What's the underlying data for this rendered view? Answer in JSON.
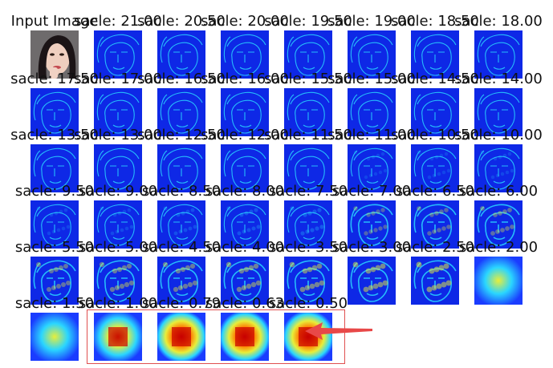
{
  "grid": {
    "input_label": "Input Image",
    "scale_prefix": "sacle: ",
    "scales": [
      "21.00",
      "20.50",
      "20.00",
      "19.50",
      "19.00",
      "18.50",
      "18.00",
      "17.50",
      "17.00",
      "16.50",
      "16.00",
      "15.50",
      "15.00",
      "14.50",
      "14.00",
      "13.50",
      "13.00",
      "12.50",
      "12.00",
      "11.50",
      "11.00",
      "10.50",
      "10.00",
      "9.50",
      "9.00",
      "8.50",
      "8.00",
      "7.50",
      "7.00",
      "6.50",
      "6.00",
      "5.50",
      "5.00",
      "4.50",
      "4.00",
      "3.50",
      "3.00",
      "2.50",
      "2.00",
      "1.50",
      "1.00",
      "0.79",
      "0.63",
      "0.50"
    ]
  },
  "colors": {
    "heatmap_dark_blue": "#0010c8",
    "heatmap_blue": "#1a3cff",
    "heatmap_cyan": "#2ad6ff",
    "heatmap_yellow": "#e8ee3a",
    "heatmap_red": "#c80000",
    "highlight_box": "#e05050",
    "arrow": "#e84848"
  },
  "annotation": {
    "highlight": "box around last four low-scale heatmaps",
    "arrow": "points to 0.50 heatmap"
  }
}
